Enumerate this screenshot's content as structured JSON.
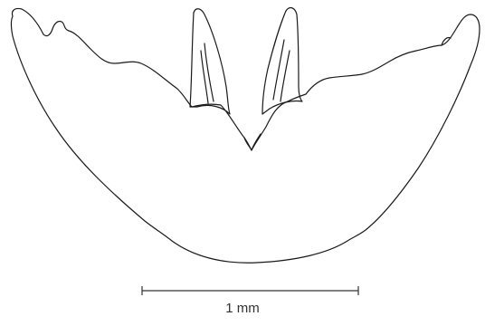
{
  "figure": {
    "scale_bar_label": "1 mm",
    "line_color": "#1a1a1a"
  }
}
